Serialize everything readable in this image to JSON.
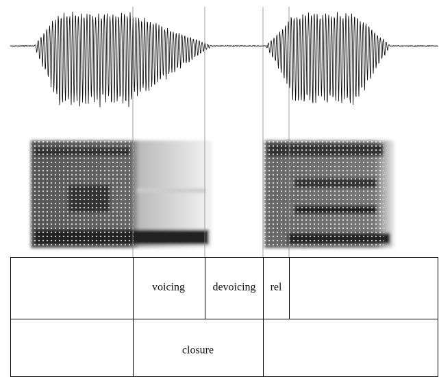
{
  "tiers": [
    {
      "intervals": [
        {
          "label": "voicing"
        },
        {
          "label": "devoicing"
        },
        {
          "label": "rel"
        }
      ]
    },
    {
      "intervals": [
        {
          "label": "closure"
        }
      ]
    }
  ]
}
